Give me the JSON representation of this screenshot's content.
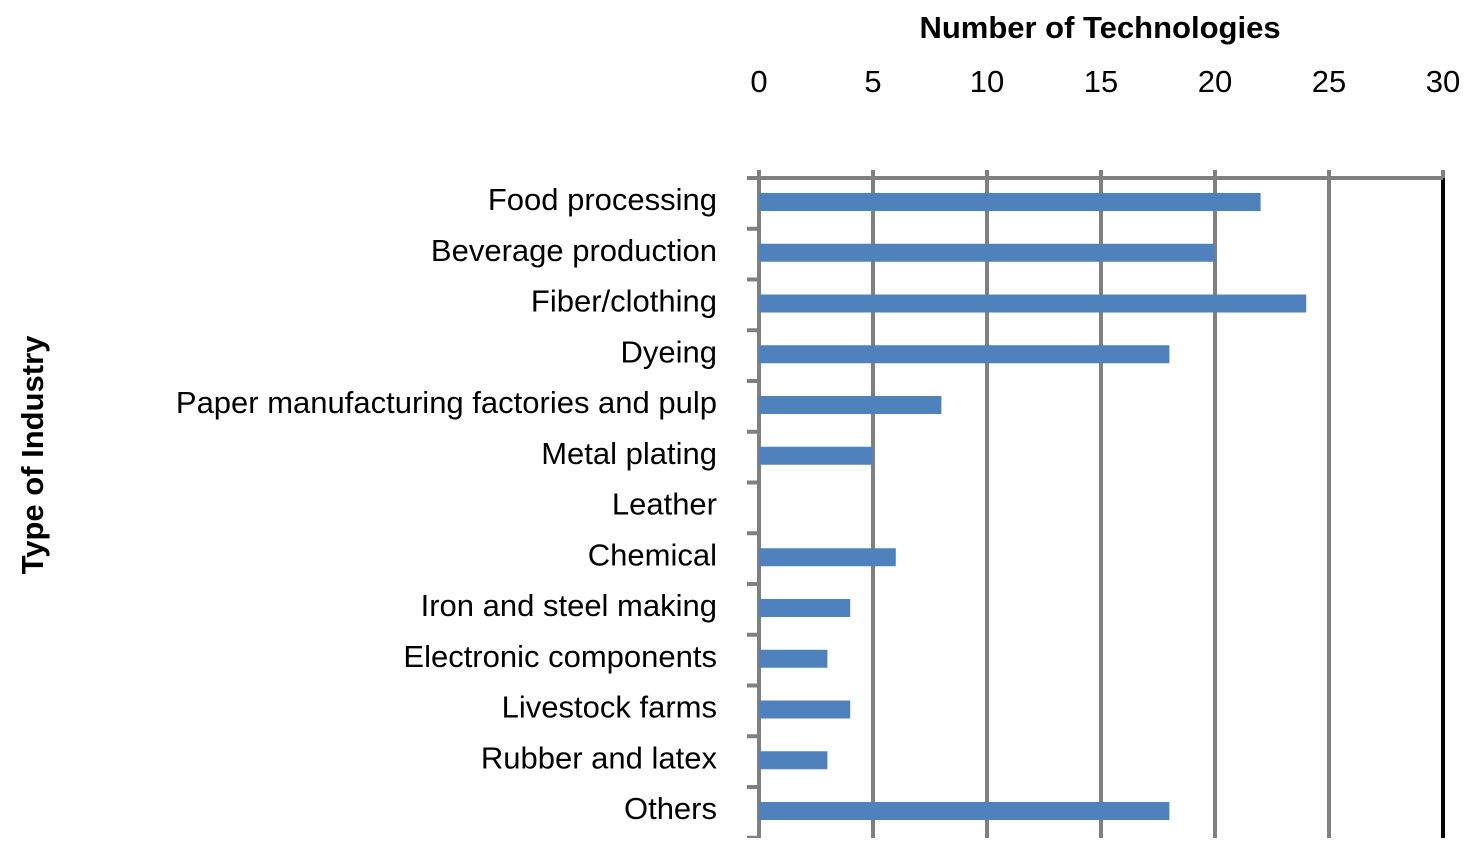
{
  "chart_data": {
    "type": "bar",
    "orientation": "horizontal",
    "title": "Number of Technologies",
    "y_label": "Type of Industry",
    "categories": [
      "Food processing",
      "Beverage production",
      "Fiber/clothing",
      "Dyeing",
      "Paper manufacturing factories and pulp",
      "Metal plating",
      "Leather",
      "Chemical",
      "Iron and steel making",
      "Electronic components",
      "Livestock farms",
      "Rubber and latex",
      "Others"
    ],
    "values": [
      22,
      20,
      24,
      18,
      8,
      5,
      0,
      6,
      4,
      3,
      4,
      3,
      18
    ],
    "color": "#4f81bd",
    "xlim": [
      0,
      30
    ],
    "xticks": [
      0,
      5,
      10,
      15,
      20,
      25,
      30
    ],
    "grid": true,
    "x_axis_position": "top"
  }
}
